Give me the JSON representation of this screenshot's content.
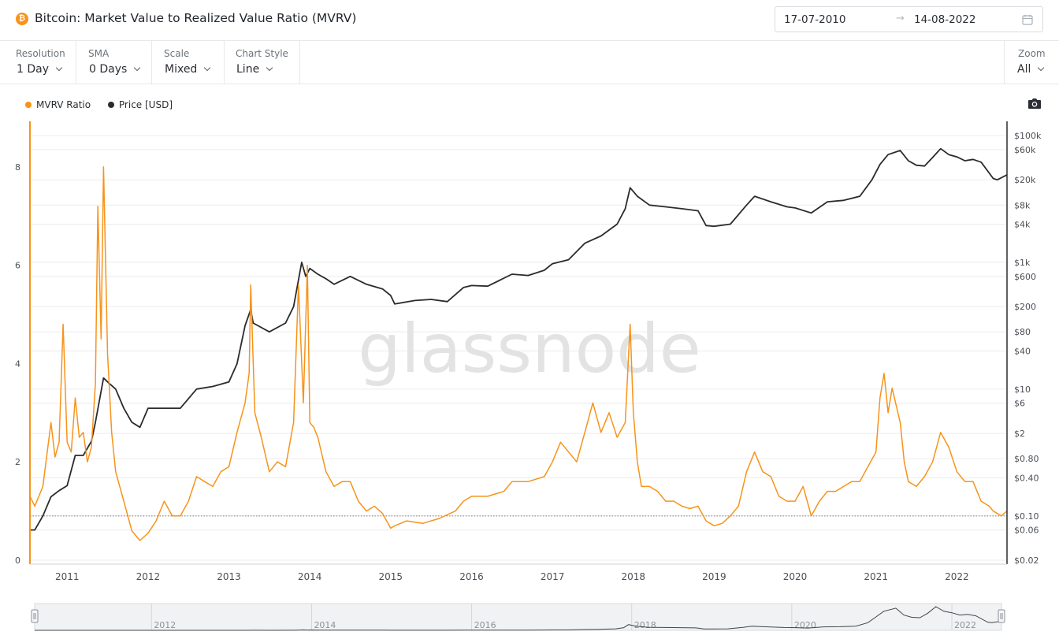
{
  "header": {
    "title": "Bitcoin: Market Value to Realized Value Ratio (MVRV)",
    "date_from": "17-07-2010",
    "date_arrow": "→",
    "date_to": "14-08-2022"
  },
  "toolbar": {
    "resolution": {
      "label": "Resolution",
      "value": "1 Day"
    },
    "sma": {
      "label": "SMA",
      "value": "0 Days"
    },
    "scale": {
      "label": "Scale",
      "value": "Mixed"
    },
    "chart_style": {
      "label": "Chart Style",
      "value": "Line"
    },
    "zoom": {
      "label": "Zoom",
      "value": "All"
    }
  },
  "watermark": "glassnode",
  "colors": {
    "mvrv": "#f7931a",
    "price": "#2b2b2b",
    "accent": "#f7931a"
  },
  "icons": {
    "coin": "bitcoin-icon",
    "calendar": "calendar-icon",
    "camera": "camera-icon"
  },
  "chart_data": {
    "type": "line",
    "title": "Bitcoin: Market Value to Realized Value Ratio (MVRV)",
    "x_ticks": [
      "2011",
      "2012",
      "2013",
      "2014",
      "2015",
      "2016",
      "2017",
      "2018",
      "2019",
      "2020",
      "2021",
      "2022"
    ],
    "x_range": [
      2010.54,
      2022.62
    ],
    "left_axis": {
      "ticks": [
        "0",
        "2",
        "4",
        "6",
        "8"
      ],
      "range": [
        0,
        8
      ]
    },
    "right_axis": {
      "scale": "log",
      "ticks": [
        "$100k",
        "$60k",
        "$20k",
        "$8k",
        "$4k",
        "$1k",
        "$600",
        "$200",
        "$80",
        "$40",
        "$10",
        "$6",
        "$2",
        "$0.80",
        "$0.40",
        "$0.10",
        "$0.06",
        "$0.02"
      ]
    },
    "reference_line": {
      "value": 0.9,
      "style": "dotted"
    },
    "legend_placement": "top-left",
    "series": [
      {
        "name": "MVRV Ratio",
        "axis": "left",
        "x": [
          2010.54,
          2010.6,
          2010.7,
          2010.8,
          2010.85,
          2010.9,
          2010.95,
          2011.0,
          2011.05,
          2011.1,
          2011.15,
          2011.2,
          2011.25,
          2011.3,
          2011.35,
          2011.38,
          2011.42,
          2011.45,
          2011.5,
          2011.55,
          2011.6,
          2011.7,
          2011.8,
          2011.9,
          2012.0,
          2012.1,
          2012.2,
          2012.3,
          2012.4,
          2012.5,
          2012.6,
          2012.7,
          2012.8,
          2012.9,
          2013.0,
          2013.1,
          2013.2,
          2013.25,
          2013.27,
          2013.32,
          2013.4,
          2013.5,
          2013.6,
          2013.7,
          2013.8,
          2013.86,
          2013.92,
          2013.97,
          2014.0,
          2014.05,
          2014.1,
          2014.2,
          2014.3,
          2014.4,
          2014.5,
          2014.6,
          2014.7,
          2014.8,
          2014.9,
          2015.0,
          2015.05,
          2015.2,
          2015.4,
          2015.6,
          2015.8,
          2015.9,
          2016.0,
          2016.2,
          2016.4,
          2016.5,
          2016.7,
          2016.9,
          2017.0,
          2017.1,
          2017.3,
          2017.4,
          2017.5,
          2017.6,
          2017.7,
          2017.8,
          2017.9,
          2017.96,
          2018.0,
          2018.05,
          2018.1,
          2018.2,
          2018.3,
          2018.4,
          2018.5,
          2018.6,
          2018.7,
          2018.8,
          2018.9,
          2019.0,
          2019.1,
          2019.2,
          2019.3,
          2019.4,
          2019.5,
          2019.6,
          2019.7,
          2019.8,
          2019.9,
          2020.0,
          2020.1,
          2020.2,
          2020.3,
          2020.4,
          2020.5,
          2020.6,
          2020.7,
          2020.8,
          2020.9,
          2021.0,
          2021.05,
          2021.1,
          2021.15,
          2021.2,
          2021.3,
          2021.35,
          2021.4,
          2021.5,
          2021.6,
          2021.7,
          2021.8,
          2021.9,
          2022.0,
          2022.1,
          2022.2,
          2022.3,
          2022.4,
          2022.45,
          2022.5,
          2022.55,
          2022.62
        ],
        "values": [
          1.3,
          1.1,
          1.5,
          2.8,
          2.1,
          2.4,
          4.8,
          2.4,
          2.2,
          3.3,
          2.5,
          2.6,
          2.0,
          2.3,
          3.6,
          7.2,
          4.5,
          8.0,
          4.2,
          2.6,
          1.8,
          1.2,
          0.6,
          0.4,
          0.55,
          0.8,
          1.2,
          0.9,
          0.9,
          1.2,
          1.7,
          1.6,
          1.5,
          1.8,
          1.9,
          2.6,
          3.2,
          3.8,
          5.6,
          3.0,
          2.5,
          1.8,
          2.0,
          1.9,
          2.8,
          5.6,
          3.2,
          6.0,
          2.8,
          2.7,
          2.5,
          1.8,
          1.5,
          1.6,
          1.6,
          1.2,
          1.0,
          1.1,
          0.95,
          0.65,
          0.7,
          0.8,
          0.75,
          0.85,
          1.0,
          1.2,
          1.3,
          1.3,
          1.4,
          1.6,
          1.6,
          1.7,
          2.0,
          2.4,
          2.0,
          2.6,
          3.2,
          2.6,
          3.0,
          2.5,
          2.8,
          4.8,
          3.0,
          2.0,
          1.5,
          1.5,
          1.4,
          1.2,
          1.2,
          1.1,
          1.05,
          1.1,
          0.8,
          0.7,
          0.75,
          0.9,
          1.1,
          1.8,
          2.2,
          1.8,
          1.7,
          1.3,
          1.2,
          1.2,
          1.5,
          0.9,
          1.2,
          1.4,
          1.4,
          1.5,
          1.6,
          1.6,
          1.9,
          2.2,
          3.3,
          3.8,
          3.0,
          3.5,
          2.8,
          2.0,
          1.6,
          1.5,
          1.7,
          2.0,
          2.6,
          2.3,
          1.8,
          1.6,
          1.6,
          1.2,
          1.1,
          1.0,
          0.95,
          0.9,
          1.0
        ]
      },
      {
        "name": "Price [USD]",
        "axis": "right",
        "x": [
          2010.54,
          2010.6,
          2010.7,
          2010.8,
          2010.9,
          2011.0,
          2011.1,
          2011.2,
          2011.3,
          2011.35,
          2011.45,
          2011.5,
          2011.6,
          2011.7,
          2011.8,
          2011.9,
          2012.0,
          2012.2,
          2012.4,
          2012.6,
          2012.8,
          2013.0,
          2013.1,
          2013.2,
          2013.27,
          2013.3,
          2013.5,
          2013.7,
          2013.8,
          2013.9,
          2013.95,
          2014.0,
          2014.1,
          2014.2,
          2014.3,
          2014.5,
          2014.7,
          2014.9,
          2015.0,
          2015.05,
          2015.3,
          2015.5,
          2015.7,
          2015.9,
          2016.0,
          2016.2,
          2016.5,
          2016.7,
          2016.9,
          2017.0,
          2017.2,
          2017.4,
          2017.6,
          2017.8,
          2017.9,
          2017.96,
          2018.05,
          2018.2,
          2018.4,
          2018.6,
          2018.8,
          2018.9,
          2019.0,
          2019.2,
          2019.4,
          2019.5,
          2019.7,
          2019.9,
          2020.0,
          2020.2,
          2020.4,
          2020.6,
          2020.8,
          2020.95,
          2021.05,
          2021.15,
          2021.3,
          2021.4,
          2021.5,
          2021.6,
          2021.7,
          2021.8,
          2021.9,
          2022.0,
          2022.1,
          2022.2,
          2022.3,
          2022.45,
          2022.5,
          2022.62
        ],
        "values": [
          0.06,
          0.06,
          0.1,
          0.2,
          0.25,
          0.3,
          0.9,
          0.9,
          1.5,
          3.0,
          15,
          13,
          10,
          5,
          3,
          2.5,
          5,
          5,
          5,
          10,
          11,
          13,
          25,
          100,
          180,
          110,
          80,
          110,
          200,
          1000,
          600,
          800,
          650,
          550,
          450,
          600,
          450,
          380,
          300,
          220,
          250,
          260,
          240,
          400,
          430,
          420,
          650,
          620,
          750,
          950,
          1100,
          2000,
          2600,
          4000,
          7000,
          15000,
          11000,
          8000,
          7500,
          7000,
          6500,
          3800,
          3700,
          4000,
          8000,
          11000,
          9000,
          7500,
          7200,
          6000,
          9000,
          9500,
          11000,
          20000,
          35000,
          50000,
          58000,
          40000,
          34000,
          33000,
          45000,
          62000,
          50000,
          46000,
          40000,
          42000,
          38000,
          21000,
          20000,
          24000
        ]
      }
    ]
  },
  "navigator": {
    "ticks": [
      "2012",
      "2014",
      "2016",
      "2018",
      "2020",
      "2022"
    ]
  }
}
